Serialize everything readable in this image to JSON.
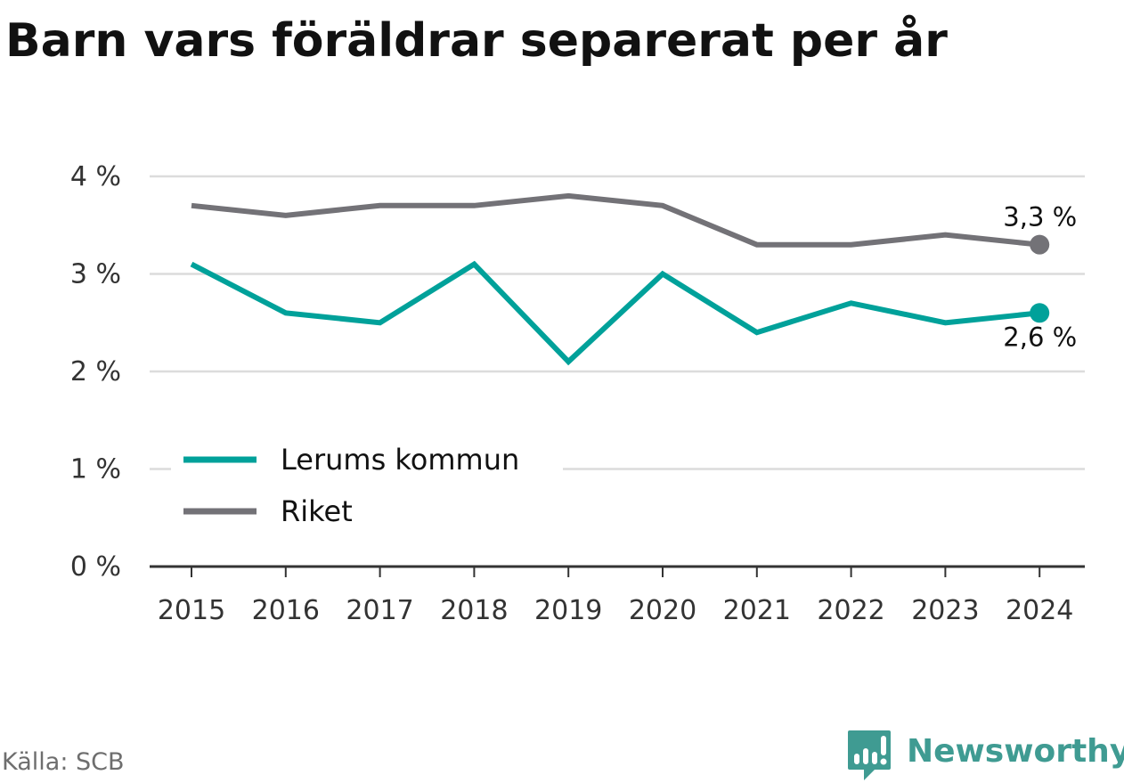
{
  "title": "Barn vars föräldrar separerat per år",
  "source": "Källa: SCB",
  "brand": {
    "name": "Newsworthy",
    "icon": "newsworthy-logo-icon",
    "color": "#3f9b92"
  },
  "chart_data": {
    "type": "line",
    "title": "Barn vars föräldrar separerat per år",
    "xlabel": "",
    "ylabel": "",
    "categories": [
      "2015",
      "2016",
      "2017",
      "2018",
      "2019",
      "2020",
      "2021",
      "2022",
      "2023",
      "2024"
    ],
    "ylim": [
      0,
      4
    ],
    "yticks": [
      0,
      1,
      2,
      3,
      4
    ],
    "ytick_labels": [
      "0 %",
      "1 %",
      "2 %",
      "3 %",
      "4 %"
    ],
    "grid": true,
    "legend_position": "bottom-left",
    "series": [
      {
        "name": "Lerums kommun",
        "color": "#00a19a",
        "values": [
          3.1,
          2.6,
          2.5,
          3.1,
          2.1,
          3.0,
          2.4,
          2.7,
          2.5,
          2.6
        ],
        "end_label": "2,6 %"
      },
      {
        "name": "Riket",
        "color": "#737277",
        "values": [
          3.7,
          3.6,
          3.7,
          3.7,
          3.8,
          3.7,
          3.3,
          3.3,
          3.4,
          3.3
        ],
        "end_label": "3,3 %"
      }
    ]
  }
}
